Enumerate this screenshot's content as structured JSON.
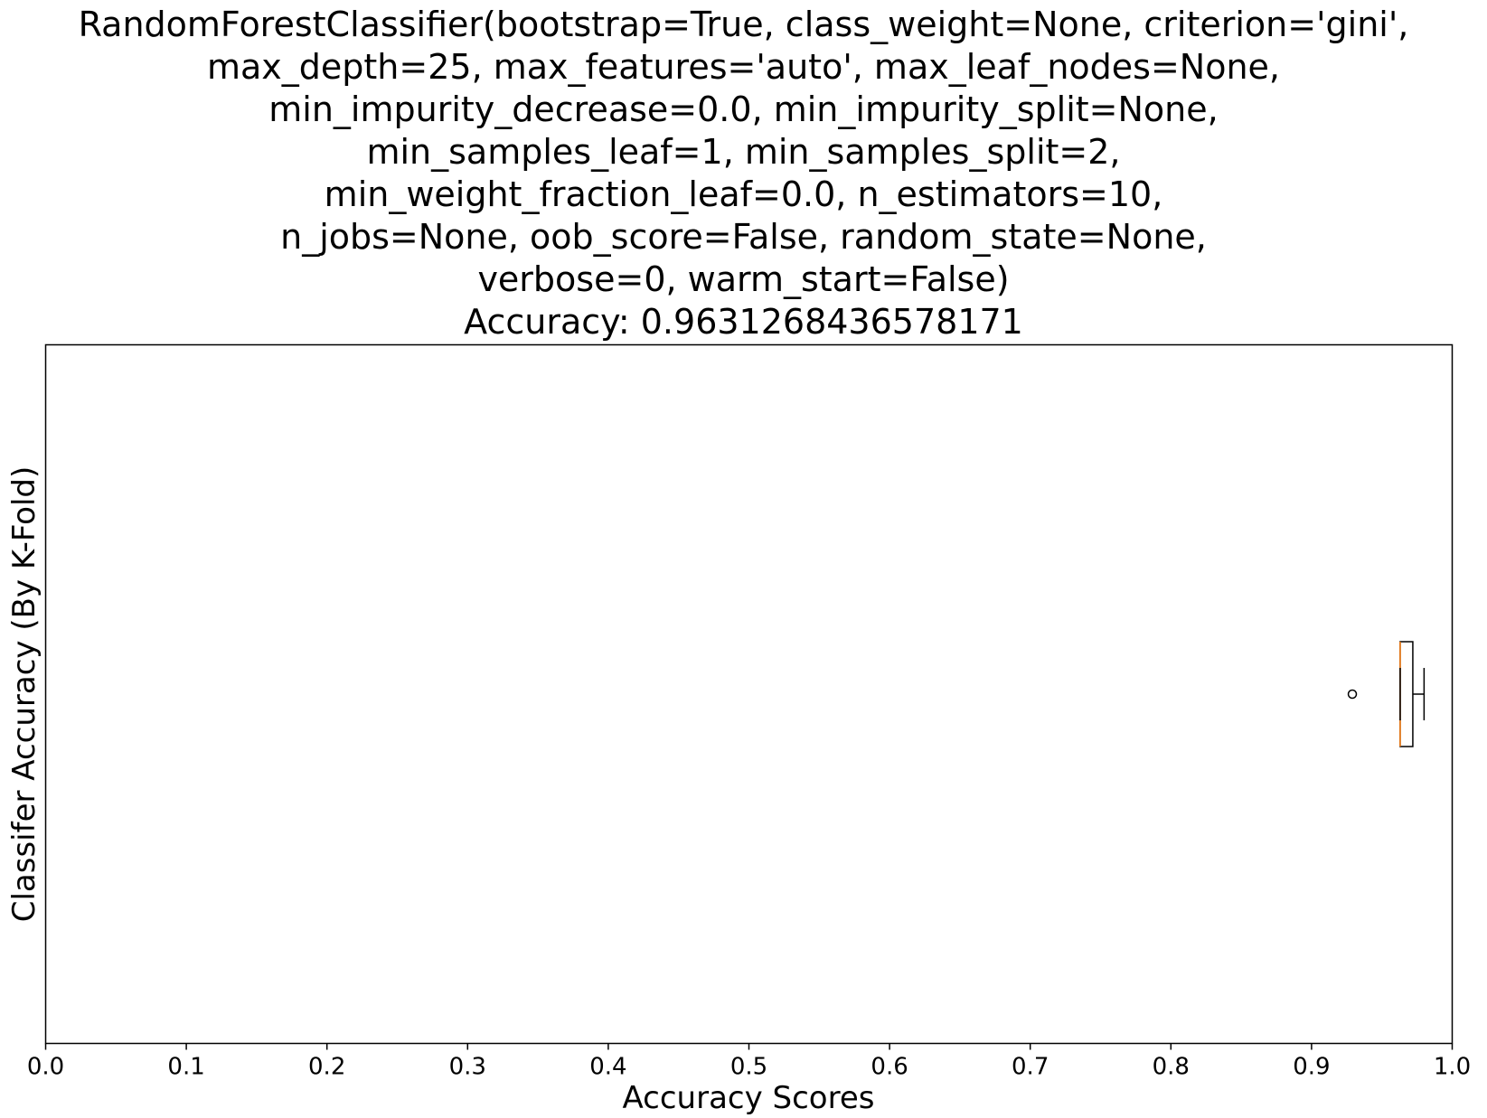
{
  "chart_data": {
    "type": "boxplot",
    "orientation": "horizontal",
    "title_lines": [
      "RandomForestClassifier(bootstrap=True, class_weight=None, criterion='gini',",
      "max_depth=25, max_features='auto', max_leaf_nodes=None,",
      "min_impurity_decrease=0.0, min_impurity_split=None,",
      "min_samples_leaf=1, min_samples_split=2,",
      "min_weight_fraction_leaf=0.0, n_estimators=10,",
      "n_jobs=None, oob_score=False, random_state=None,",
      "verbose=0, warm_start=False)",
      "Accuracy: 0.9631268436578171"
    ],
    "xlabel": "Accuracy Scores",
    "ylabel": "Classifer Accuracy (By K-Fold)",
    "xlim": [
      0.0,
      1.0
    ],
    "xticks": [
      "0.0",
      "0.1",
      "0.2",
      "0.3",
      "0.4",
      "0.5",
      "0.6",
      "0.7",
      "0.8",
      "0.9",
      "1.0"
    ],
    "box": {
      "whisker_low": 0.963,
      "q1": 0.963,
      "median": 0.963,
      "q3": 0.972,
      "whisker_high": 0.98,
      "outliers": [
        0.929
      ]
    },
    "grid": false,
    "colors": {
      "box": "#000000",
      "median": "#ff7f0e",
      "outlier": "#000000"
    }
  }
}
